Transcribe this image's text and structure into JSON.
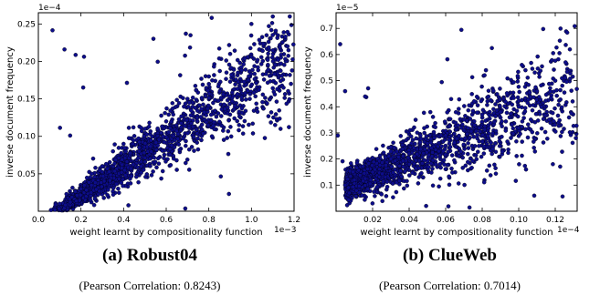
{
  "chart_data": [
    {
      "type": "scatter",
      "caption": "(a) Robust04",
      "subcaption": "(Pearson Correlation: 0.8243)",
      "xlabel": "weight learnt by compositionality function",
      "ylabel": "inverse document frequency",
      "x_exponent": "1e−3",
      "y_exponent": "1e−4",
      "xlim": [
        0.0,
        1.2
      ],
      "ylim": [
        0.0,
        0.265
      ],
      "xticks": [
        "0.0",
        "0.2",
        "0.4",
        "0.6",
        "0.8",
        "1.0",
        "1.2"
      ],
      "yticks": [
        "0.05",
        "0.10",
        "0.15",
        "0.20",
        "0.25"
      ],
      "marker_color": "#0d0d8a",
      "approx_points": 2500,
      "correlation": 0.8243,
      "cloud": {
        "x_center": 0.15,
        "y_center": 0.012,
        "slope": 0.19
      },
      "sample_points": [
        [
          0.1,
          0.01
        ],
        [
          0.15,
          0.012
        ],
        [
          0.2,
          0.03
        ],
        [
          0.25,
          0.05
        ],
        [
          0.3,
          0.06
        ],
        [
          0.35,
          0.08
        ],
        [
          0.4,
          0.09
        ],
        [
          0.5,
          0.11
        ],
        [
          0.6,
          0.12
        ],
        [
          0.7,
          0.15
        ],
        [
          0.8,
          0.17
        ],
        [
          0.9,
          0.21
        ],
        [
          1.0,
          0.25
        ],
        [
          1.1,
          0.26
        ],
        [
          1.18,
          0.26
        ]
      ],
      "grid": false,
      "legend": "none"
    },
    {
      "type": "scatter",
      "caption": "(b) ClueWeb",
      "subcaption": "(Pearson Correlation: 0.7014)",
      "xlabel": "weight learnt by compositionality function",
      "ylabel": "inverse document frequency",
      "x_exponent": "1e−4",
      "y_exponent": "1e−5",
      "xlim": [
        0.0,
        0.132
      ],
      "ylim": [
        0.0,
        0.76
      ],
      "xticks": [
        "0.02",
        "0.04",
        "0.06",
        "0.08",
        "0.10",
        "0.12"
      ],
      "yticks": [
        "0.1",
        "0.2",
        "0.3",
        "0.4",
        "0.5",
        "0.6",
        "0.7"
      ],
      "marker_color": "#0d0d8a",
      "approx_points": 2500,
      "correlation": 0.7014,
      "cloud": {
        "x_center": 0.005,
        "y_center": 0.1,
        "slope": 2.8
      },
      "sample_points": [
        [
          0.005,
          0.1
        ],
        [
          0.01,
          0.12
        ],
        [
          0.02,
          0.15
        ],
        [
          0.03,
          0.2
        ],
        [
          0.04,
          0.22
        ],
        [
          0.05,
          0.26
        ],
        [
          0.06,
          0.29
        ],
        [
          0.07,
          0.31
        ],
        [
          0.08,
          0.37
        ],
        [
          0.09,
          0.38
        ],
        [
          0.1,
          0.4
        ],
        [
          0.11,
          0.46
        ],
        [
          0.12,
          0.5
        ],
        [
          0.128,
          0.62
        ]
      ],
      "grid": false,
      "legend": "none"
    }
  ]
}
